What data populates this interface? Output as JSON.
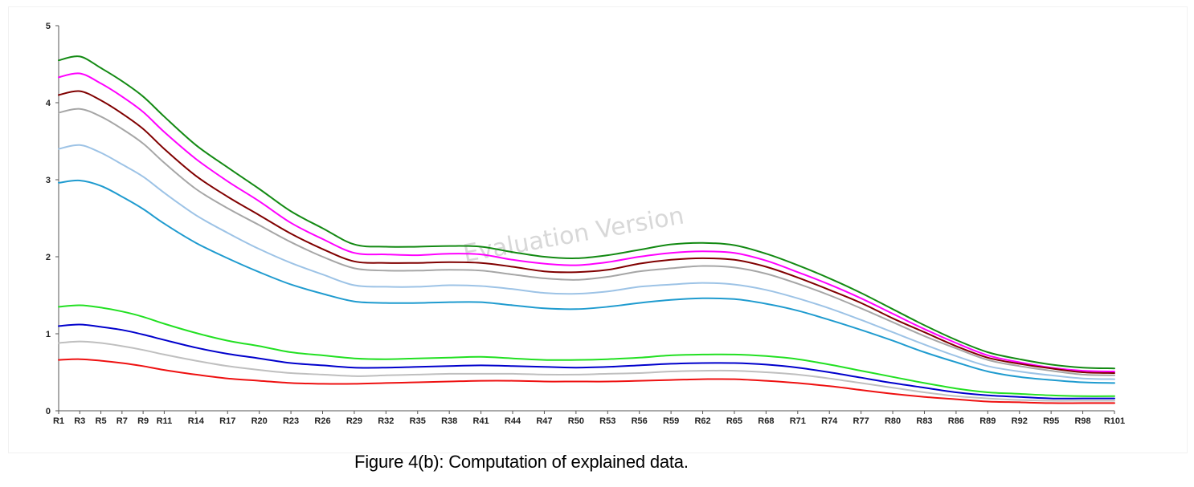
{
  "caption": "Figure 4(b): Computation of explained data.",
  "watermark": "Evaluation Version",
  "chart_data": {
    "type": "line",
    "title": "",
    "xlabel": "",
    "ylabel": "",
    "ylim": [
      0,
      5
    ],
    "yticks": [
      "0",
      "1",
      "2",
      "3",
      "4",
      "5"
    ],
    "x_tick_labels": [
      "R1",
      "R3",
      "R5",
      "R7",
      "R9",
      "R11",
      "R14",
      "R17",
      "R20",
      "R23",
      "R26",
      "R29",
      "R32",
      "R35",
      "R38",
      "R41",
      "R44",
      "R47",
      "R50",
      "R53",
      "R56",
      "R59",
      "R62",
      "R65",
      "R68",
      "R71",
      "R74",
      "R77",
      "R80",
      "R83",
      "R86",
      "R89",
      "R92",
      "R95",
      "R98",
      "R101"
    ],
    "grid": false,
    "legend": "none",
    "x": [
      1,
      3,
      5,
      7,
      9,
      11,
      14,
      17,
      20,
      23,
      26,
      29,
      32,
      35,
      38,
      41,
      44,
      47,
      50,
      53,
      56,
      59,
      62,
      65,
      68,
      71,
      74,
      77,
      80,
      83,
      86,
      89,
      92,
      95,
      98,
      101
    ],
    "series": [
      {
        "color": "#138a13",
        "values": [
          4.55,
          4.6,
          4.45,
          4.28,
          4.08,
          3.82,
          3.45,
          3.16,
          2.88,
          2.59,
          2.37,
          2.16,
          2.13,
          2.13,
          2.14,
          2.13,
          2.06,
          2.0,
          1.98,
          2.02,
          2.09,
          2.16,
          2.18,
          2.15,
          2.04,
          1.89,
          1.72,
          1.53,
          1.32,
          1.11,
          0.92,
          0.76,
          0.67,
          0.6,
          0.56,
          0.55
        ]
      },
      {
        "color": "#ff00ff",
        "values": [
          4.33,
          4.38,
          4.25,
          4.08,
          3.88,
          3.62,
          3.27,
          2.98,
          2.72,
          2.44,
          2.23,
          2.05,
          2.03,
          2.02,
          2.04,
          2.03,
          1.96,
          1.91,
          1.89,
          1.93,
          2.0,
          2.05,
          2.07,
          2.05,
          1.95,
          1.8,
          1.64,
          1.46,
          1.26,
          1.06,
          0.88,
          0.72,
          0.63,
          0.56,
          0.52,
          0.51
        ]
      },
      {
        "color": "#800000",
        "values": [
          4.1,
          4.15,
          4.03,
          3.86,
          3.66,
          3.4,
          3.05,
          2.78,
          2.54,
          2.3,
          2.1,
          1.94,
          1.92,
          1.92,
          1.93,
          1.92,
          1.87,
          1.81,
          1.8,
          1.83,
          1.91,
          1.96,
          1.98,
          1.96,
          1.87,
          1.73,
          1.57,
          1.4,
          1.2,
          1.02,
          0.84,
          0.69,
          0.61,
          0.55,
          0.5,
          0.49
        ]
      },
      {
        "color": "#a6a6a6",
        "values": [
          3.87,
          3.92,
          3.82,
          3.66,
          3.47,
          3.22,
          2.88,
          2.63,
          2.41,
          2.19,
          2.0,
          1.85,
          1.82,
          1.82,
          1.83,
          1.82,
          1.77,
          1.72,
          1.7,
          1.74,
          1.81,
          1.85,
          1.88,
          1.86,
          1.78,
          1.65,
          1.5,
          1.33,
          1.15,
          0.97,
          0.81,
          0.66,
          0.58,
          0.52,
          0.47,
          0.46
        ]
      },
      {
        "color": "#9dc3e6",
        "values": [
          3.4,
          3.45,
          3.35,
          3.2,
          3.04,
          2.83,
          2.54,
          2.31,
          2.1,
          1.92,
          1.77,
          1.63,
          1.61,
          1.61,
          1.63,
          1.62,
          1.58,
          1.53,
          1.52,
          1.55,
          1.61,
          1.64,
          1.66,
          1.64,
          1.57,
          1.46,
          1.33,
          1.18,
          1.02,
          0.86,
          0.71,
          0.58,
          0.51,
          0.46,
          0.42,
          0.41
        ]
      },
      {
        "color": "#1f9bcf",
        "values": [
          2.96,
          2.99,
          2.92,
          2.78,
          2.62,
          2.43,
          2.18,
          1.98,
          1.8,
          1.64,
          1.52,
          1.42,
          1.4,
          1.4,
          1.41,
          1.41,
          1.37,
          1.33,
          1.32,
          1.35,
          1.4,
          1.44,
          1.46,
          1.45,
          1.39,
          1.3,
          1.18,
          1.05,
          0.91,
          0.76,
          0.63,
          0.51,
          0.44,
          0.4,
          0.37,
          0.36
        ]
      },
      {
        "color": "#22e022",
        "values": [
          1.35,
          1.37,
          1.34,
          1.29,
          1.22,
          1.13,
          1.01,
          0.91,
          0.84,
          0.76,
          0.72,
          0.68,
          0.67,
          0.68,
          0.69,
          0.7,
          0.68,
          0.66,
          0.66,
          0.67,
          0.69,
          0.72,
          0.73,
          0.73,
          0.71,
          0.67,
          0.6,
          0.52,
          0.44,
          0.36,
          0.29,
          0.24,
          0.22,
          0.2,
          0.19,
          0.19
        ]
      },
      {
        "color": "#0000cc",
        "values": [
          1.1,
          1.12,
          1.09,
          1.05,
          0.99,
          0.92,
          0.82,
          0.74,
          0.68,
          0.62,
          0.59,
          0.56,
          0.56,
          0.57,
          0.58,
          0.59,
          0.58,
          0.57,
          0.56,
          0.57,
          0.59,
          0.61,
          0.62,
          0.62,
          0.6,
          0.56,
          0.5,
          0.43,
          0.36,
          0.3,
          0.24,
          0.2,
          0.18,
          0.16,
          0.16,
          0.16
        ]
      },
      {
        "color": "#bfbfbf",
        "values": [
          0.88,
          0.9,
          0.88,
          0.84,
          0.79,
          0.73,
          0.65,
          0.58,
          0.53,
          0.49,
          0.47,
          0.45,
          0.46,
          0.47,
          0.48,
          0.48,
          0.48,
          0.47,
          0.47,
          0.48,
          0.49,
          0.51,
          0.52,
          0.52,
          0.5,
          0.47,
          0.42,
          0.36,
          0.3,
          0.24,
          0.19,
          0.16,
          0.14,
          0.13,
          0.13,
          0.13
        ]
      },
      {
        "color": "#ee1111",
        "values": [
          0.66,
          0.67,
          0.65,
          0.62,
          0.58,
          0.53,
          0.47,
          0.42,
          0.39,
          0.36,
          0.35,
          0.35,
          0.36,
          0.37,
          0.38,
          0.39,
          0.39,
          0.38,
          0.38,
          0.38,
          0.39,
          0.4,
          0.41,
          0.41,
          0.39,
          0.36,
          0.32,
          0.27,
          0.22,
          0.18,
          0.15,
          0.12,
          0.11,
          0.1,
          0.1,
          0.1
        ]
      }
    ]
  }
}
